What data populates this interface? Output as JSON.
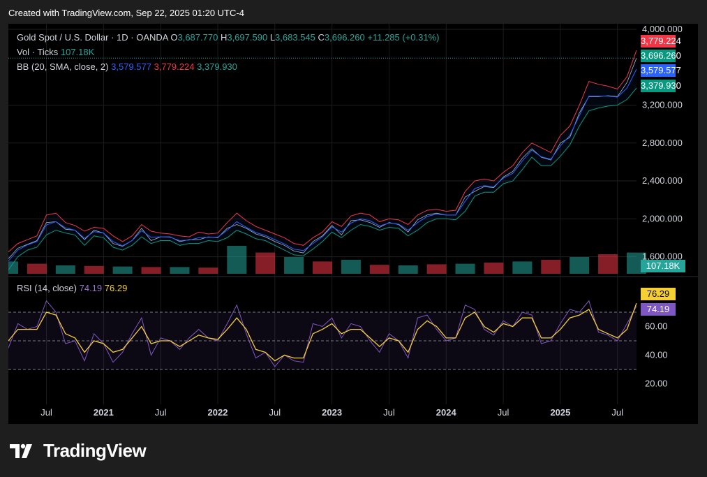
{
  "header": {
    "created": "Created with TradingView.com, Sep 22, 2025 01:20 UTC-4"
  },
  "legend": {
    "symbol": "Gold Spot / U.S. Dollar · 1D · OANDA",
    "o_label": "O",
    "o_value": "3,687.770",
    "h_label": "H",
    "h_value": "3,697.590",
    "l_label": "L",
    "l_value": "3,683.545",
    "c_label": "C",
    "c_value": "3,696.260",
    "change": "+11.285 (+0.31%)",
    "vol_label": "Vol · Ticks",
    "vol_value": "107.18K",
    "bb_label": "BB (20, SMA, close, 2)",
    "bb_basis": "3,579.577",
    "bb_upper": "3,779.224",
    "bb_lower": "3,379.930",
    "rsi_label": "RSI (14, close)",
    "rsi_value": "74.19",
    "rsi_ma": "76.29"
  },
  "badges": {
    "upper": "3,779.224",
    "close": "3,696.260",
    "basis": "3,579.577",
    "lower": "3,379.930",
    "volume": "107.18K",
    "rsi_ma": "76.29",
    "rsi": "74.19"
  },
  "footer": {
    "brand": "TradingView"
  },
  "colors": {
    "up": "#26a69a",
    "down": "#f23645",
    "basis": "#2962ff",
    "upper": "#f23645",
    "lower": "#089981",
    "rsi": "#7e57c2",
    "rsi_ma": "#f5cf33"
  },
  "chart_data": [
    {
      "type": "line",
      "title": "Gold Spot / U.S. Dollar · 1D · OANDA",
      "indicator": "BB (20, SMA, close, 2)",
      "y_ticks": [
        "4,000.000",
        "3,200.000",
        "2,800.000",
        "2,400.000",
        "2,000.000",
        "1,600.000"
      ],
      "y_tick_values": [
        4000,
        3200,
        2800,
        2400,
        2000,
        1600
      ],
      "ylim": [
        1420,
        4000
      ],
      "x_ticks": [
        "Jul",
        "2021",
        "Jul",
        "2022",
        "Jul",
        "2023",
        "Jul",
        "2024",
        "Jul",
        "2025",
        "Jul"
      ],
      "x_tick_dates": [
        "2020-07",
        "2021-01",
        "2021-07",
        "2022-01",
        "2022-07",
        "2023-01",
        "2023-07",
        "2024-01",
        "2024-07",
        "2025-01",
        "2025-07"
      ],
      "xlim": [
        "2020-03",
        "2025-09"
      ],
      "x": [
        "2020-03",
        "2020-04",
        "2020-05",
        "2020-06",
        "2020-07",
        "2020-08",
        "2020-09",
        "2020-10",
        "2020-11",
        "2020-12",
        "2021-01",
        "2021-02",
        "2021-03",
        "2021-04",
        "2021-05",
        "2021-06",
        "2021-07",
        "2021-08",
        "2021-09",
        "2021-10",
        "2021-11",
        "2021-12",
        "2022-01",
        "2022-02",
        "2022-03",
        "2022-04",
        "2022-05",
        "2022-06",
        "2022-07",
        "2022-08",
        "2022-09",
        "2022-10",
        "2022-11",
        "2022-12",
        "2023-01",
        "2023-02",
        "2023-03",
        "2023-04",
        "2023-05",
        "2023-06",
        "2023-07",
        "2023-08",
        "2023-09",
        "2023-10",
        "2023-11",
        "2023-12",
        "2024-01",
        "2024-02",
        "2024-03",
        "2024-04",
        "2024-05",
        "2024-06",
        "2024-07",
        "2024-08",
        "2024-09",
        "2024-10",
        "2024-11",
        "2024-12",
        "2025-01",
        "2025-02",
        "2025-03",
        "2025-04",
        "2025-05",
        "2025-06",
        "2025-07",
        "2025-08",
        "2025-09"
      ],
      "series": [
        {
          "name": "Close",
          "values": [
            1580,
            1690,
            1730,
            1770,
            1960,
            1970,
            1890,
            1880,
            1780,
            1880,
            1850,
            1740,
            1710,
            1770,
            1900,
            1770,
            1810,
            1810,
            1760,
            1780,
            1780,
            1810,
            1800,
            1900,
            1940,
            1900,
            1840,
            1810,
            1760,
            1720,
            1660,
            1640,
            1760,
            1820,
            1930,
            1830,
            1980,
            1990,
            1960,
            1910,
            1960,
            1940,
            1860,
            1990,
            2040,
            2060,
            2040,
            2040,
            2230,
            2290,
            2340,
            2330,
            2440,
            2500,
            2640,
            2740,
            2650,
            2620,
            2800,
            2860,
            3120,
            3290,
            3290,
            3300,
            3290,
            3440,
            3696
          ]
        },
        {
          "name": "Upper",
          "values": [
            1650,
            1740,
            1780,
            1820,
            2040,
            2060,
            1960,
            1930,
            1870,
            1910,
            1900,
            1820,
            1760,
            1820,
            1940,
            1870,
            1850,
            1840,
            1820,
            1810,
            1860,
            1840,
            1850,
            1960,
            2060,
            1980,
            1920,
            1880,
            1840,
            1800,
            1740,
            1720,
            1800,
            1860,
            1970,
            1920,
            2030,
            2060,
            2040,
            1970,
            2000,
            1990,
            1940,
            2040,
            2090,
            2100,
            2080,
            2090,
            2290,
            2400,
            2420,
            2400,
            2490,
            2560,
            2700,
            2800,
            2750,
            2700,
            2880,
            2980,
            3200,
            3450,
            3420,
            3400,
            3370,
            3500,
            3779
          ]
        },
        {
          "name": "Lower",
          "values": [
            1460,
            1600,
            1670,
            1700,
            1830,
            1880,
            1850,
            1830,
            1720,
            1820,
            1800,
            1700,
            1670,
            1720,
            1810,
            1740,
            1770,
            1770,
            1720,
            1740,
            1740,
            1770,
            1760,
            1800,
            1880,
            1840,
            1790,
            1770,
            1720,
            1670,
            1620,
            1610,
            1680,
            1760,
            1860,
            1800,
            1880,
            1940,
            1920,
            1880,
            1910,
            1900,
            1820,
            1880,
            1960,
            2000,
            2000,
            1990,
            2080,
            2240,
            2280,
            2280,
            2370,
            2400,
            2520,
            2650,
            2560,
            2560,
            2660,
            2780,
            2980,
            3140,
            3170,
            3190,
            3200,
            3260,
            3380
          ]
        },
        {
          "name": "Basis",
          "values": [
            1555,
            1670,
            1725,
            1760,
            1935,
            1970,
            1905,
            1880,
            1795,
            1865,
            1850,
            1760,
            1715,
            1770,
            1875,
            1805,
            1810,
            1805,
            1770,
            1775,
            1800,
            1805,
            1805,
            1880,
            1970,
            1910,
            1855,
            1825,
            1780,
            1735,
            1680,
            1665,
            1740,
            1810,
            1915,
            1860,
            1955,
            2000,
            1980,
            1925,
            1955,
            1945,
            1880,
            1960,
            2025,
            2050,
            2040,
            2040,
            2185,
            2320,
            2350,
            2340,
            2430,
            2480,
            2610,
            2725,
            2655,
            2630,
            2770,
            2880,
            3090,
            3295,
            3295,
            3295,
            3285,
            3380,
            3580
          ]
        }
      ]
    },
    {
      "type": "bar",
      "title": "Vol · Ticks",
      "x": [
        "2020-03",
        "2020-06",
        "2020-09",
        "2020-12",
        "2021-03",
        "2021-06",
        "2021-09",
        "2021-12",
        "2022-03",
        "2022-06",
        "2022-09",
        "2022-12",
        "2023-03",
        "2023-06",
        "2023-09",
        "2023-12",
        "2024-03",
        "2024-06",
        "2024-09",
        "2024-12",
        "2025-03",
        "2025-06",
        "2025-09"
      ],
      "values": [
        22,
        18,
        15,
        14,
        13,
        12,
        12,
        11,
        50,
        38,
        30,
        22,
        25,
        16,
        15,
        17,
        18,
        20,
        22,
        25,
        30,
        35,
        38
      ],
      "unit": "K"
    },
    {
      "type": "line",
      "title": "RSI (14, close)",
      "y_ticks": [
        "60.00",
        "40.00",
        "20.00"
      ],
      "y_tick_values": [
        60,
        40,
        20
      ],
      "ylim": [
        8,
        92
      ],
      "x": [
        "2020-03",
        "2020-04",
        "2020-05",
        "2020-06",
        "2020-07",
        "2020-08",
        "2020-09",
        "2020-10",
        "2020-11",
        "2020-12",
        "2021-01",
        "2021-02",
        "2021-03",
        "2021-04",
        "2021-05",
        "2021-06",
        "2021-07",
        "2021-08",
        "2021-09",
        "2021-10",
        "2021-11",
        "2021-12",
        "2022-01",
        "2022-02",
        "2022-03",
        "2022-04",
        "2022-05",
        "2022-06",
        "2022-07",
        "2022-08",
        "2022-09",
        "2022-10",
        "2022-11",
        "2022-12",
        "2023-01",
        "2023-02",
        "2023-03",
        "2023-04",
        "2023-05",
        "2023-06",
        "2023-07",
        "2023-08",
        "2023-09",
        "2023-10",
        "2023-11",
        "2023-12",
        "2024-01",
        "2024-02",
        "2024-03",
        "2024-04",
        "2024-05",
        "2024-06",
        "2024-07",
        "2024-08",
        "2024-09",
        "2024-10",
        "2024-11",
        "2024-12",
        "2025-01",
        "2025-02",
        "2025-03",
        "2025-04",
        "2025-05",
        "2025-06",
        "2025-07",
        "2025-08",
        "2025-09"
      ],
      "series": [
        {
          "name": "RSI",
          "values": [
            45,
            62,
            58,
            60,
            78,
            70,
            48,
            50,
            36,
            55,
            48,
            35,
            42,
            55,
            66,
            40,
            52,
            50,
            44,
            52,
            58,
            52,
            50,
            62,
            75,
            55,
            38,
            42,
            32,
            40,
            36,
            35,
            62,
            60,
            66,
            52,
            62,
            60,
            50,
            42,
            55,
            50,
            38,
            66,
            68,
            58,
            50,
            52,
            75,
            72,
            58,
            54,
            64,
            60,
            70,
            68,
            48,
            50,
            62,
            72,
            70,
            78,
            56,
            54,
            50,
            62,
            74.19
          ]
        },
        {
          "name": "RSI MA",
          "values": [
            50,
            58,
            58,
            58,
            70,
            68,
            55,
            52,
            42,
            50,
            48,
            42,
            44,
            52,
            60,
            48,
            50,
            50,
            46,
            50,
            54,
            52,
            51,
            58,
            66,
            58,
            44,
            42,
            36,
            40,
            38,
            38,
            55,
            58,
            62,
            55,
            58,
            58,
            52,
            46,
            52,
            50,
            42,
            58,
            64,
            60,
            52,
            52,
            66,
            70,
            60,
            56,
            62,
            60,
            66,
            66,
            52,
            52,
            58,
            66,
            68,
            72,
            58,
            55,
            52,
            58,
            76.29
          ]
        }
      ],
      "levels": [
        70,
        50,
        30
      ]
    }
  ]
}
